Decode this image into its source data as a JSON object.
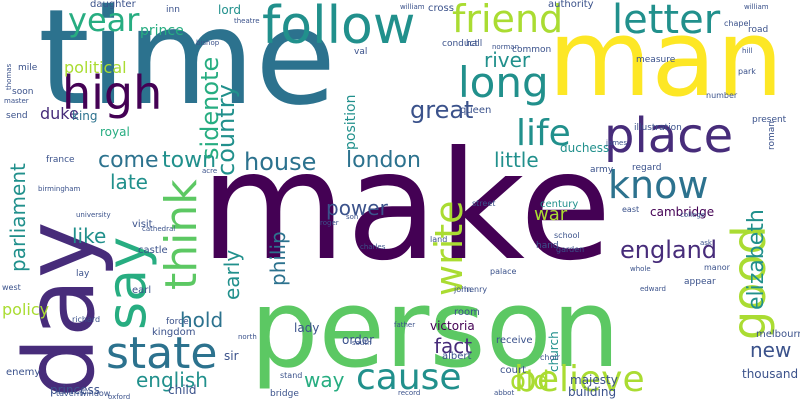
{
  "palette": {
    "dark_purple": "#440154",
    "indigo": "#472c7a",
    "blue": "#3b528b",
    "steel_blue": "#2c728e",
    "teal": "#21908c",
    "sea_green": "#27ad81",
    "green": "#5cc863",
    "light_green": "#aadc32",
    "yellow": "#fde725"
  },
  "words": [
    "time",
    "make",
    "person",
    "man",
    "day",
    "follow",
    "friend",
    "letter",
    "high",
    "place",
    "say",
    "state",
    "year",
    "long",
    "life",
    "think",
    "good",
    "know",
    "write",
    "believe",
    "cause",
    "house",
    "london",
    "great",
    "come",
    "town",
    "england",
    "elizabeth",
    "parliament",
    "river",
    "sidenote",
    "country",
    "old",
    "new",
    "late",
    "little",
    "english",
    "political",
    "policy",
    "power",
    "war",
    "fact",
    "hold",
    "way",
    "like",
    "duke",
    "philip",
    "early",
    "prince",
    "lord",
    "daughter",
    "inn",
    "authority",
    "cross",
    "queen",
    "king",
    "royal",
    "cambridge",
    "century",
    "victoria",
    "duchess",
    "church",
    "albert",
    "majesty",
    "building",
    "thousand",
    "melbourne",
    "princess",
    "child",
    "enemy",
    "court",
    "order",
    "lady",
    "sir",
    "room",
    "receive",
    "position",
    "visit",
    "castle",
    "earl",
    "kingdom",
    "france",
    "army",
    "present",
    "measure",
    "conduct",
    "common",
    "hall",
    "force",
    "illustration",
    "regard",
    "soon",
    "mile",
    "send",
    "bridge",
    "appear",
    "hand",
    "lay",
    "west",
    "street",
    "road",
    "roman",
    "number",
    "park",
    "garden",
    "manor",
    "chapel",
    "stand",
    "school",
    "land",
    "tavern",
    "window",
    "east",
    "north",
    "south",
    "henry",
    "charles",
    "john",
    "father",
    "palace",
    "richard",
    "roger",
    "son",
    "choir",
    "theatre",
    "bishop",
    "abbot",
    "record",
    "birmingham",
    "university",
    "cathedral",
    "college",
    "whole",
    "val",
    "acre",
    "oxford",
    "norman",
    "william",
    "thomas",
    "master",
    "william",
    "edward",
    "ask",
    "james",
    "hill"
  ]
}
